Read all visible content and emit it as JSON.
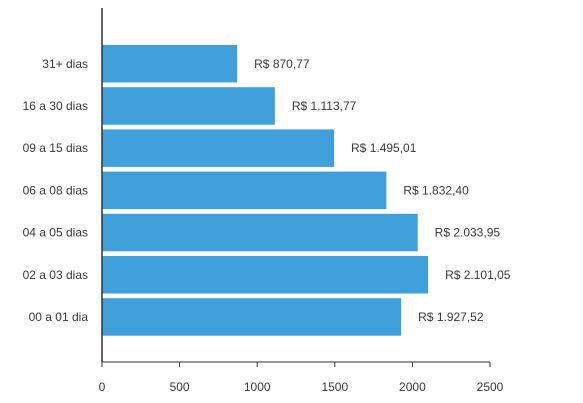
{
  "chart_data": {
    "type": "bar",
    "orientation": "horizontal",
    "title": "",
    "xlabel": "",
    "ylabel": "",
    "categories": [
      "31+ dias",
      "16 a 30 dias",
      "09 a 15 dias",
      "06 a 08 dias",
      "04 a 05 dias",
      "02 a 03 dias",
      "00 a 01 dia"
    ],
    "values": [
      870.77,
      1113.77,
      1495.01,
      1832.4,
      2033.95,
      2101.05,
      1927.52
    ],
    "value_labels": [
      "R$ 870,77",
      "R$ 1.113,77",
      "R$ 1.495,01",
      "R$ 1.832,40",
      "R$ 2.033,95",
      "R$ 2.101,05",
      "R$ 1.927,52"
    ],
    "xlim": [
      0,
      2500
    ],
    "x_ticks": [
      0,
      500,
      1000,
      1500,
      2000,
      2500
    ],
    "x_tick_labels": [
      "0",
      "500",
      "1000",
      "1500",
      "2000",
      "2500"
    ],
    "grid": false,
    "legend": "none",
    "bar_color": "#3fa0dc",
    "axis_color": "#333333"
  }
}
